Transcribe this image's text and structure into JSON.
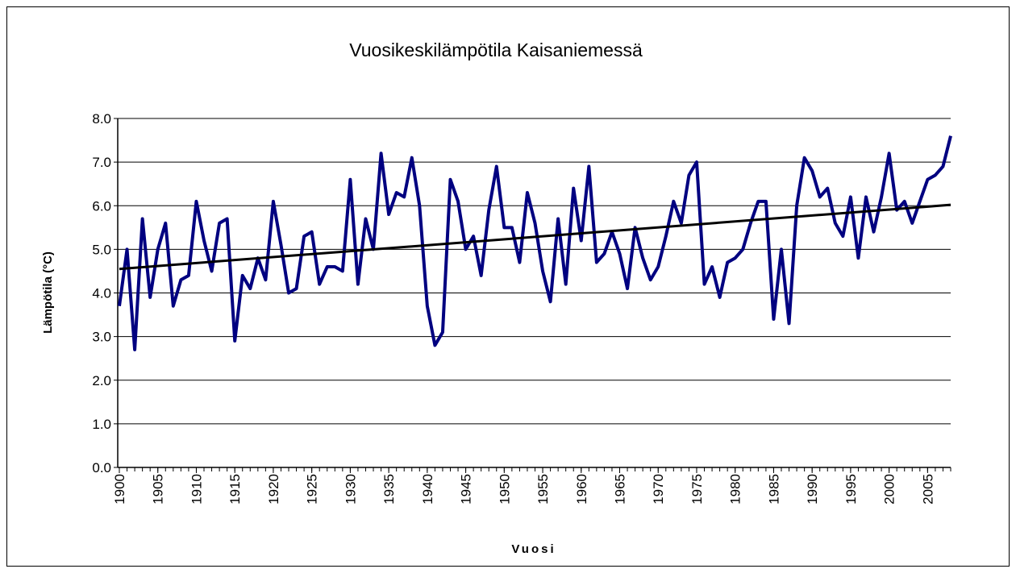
{
  "chart_data": {
    "type": "line",
    "title": "Vuosikeskilämpötila Kaisaniemessä",
    "xlabel": "Vuosi",
    "ylabel": "Lämpötila (°C)",
    "x": [
      1900,
      1901,
      1902,
      1903,
      1904,
      1905,
      1906,
      1907,
      1908,
      1909,
      1910,
      1911,
      1912,
      1913,
      1914,
      1915,
      1916,
      1917,
      1918,
      1919,
      1920,
      1921,
      1922,
      1923,
      1924,
      1925,
      1926,
      1927,
      1928,
      1929,
      1930,
      1931,
      1932,
      1933,
      1934,
      1935,
      1936,
      1937,
      1938,
      1939,
      1940,
      1941,
      1942,
      1943,
      1944,
      1945,
      1946,
      1947,
      1948,
      1949,
      1950,
      1951,
      1952,
      1953,
      1954,
      1955,
      1956,
      1957,
      1958,
      1959,
      1960,
      1961,
      1962,
      1963,
      1964,
      1965,
      1966,
      1967,
      1968,
      1969,
      1970,
      1971,
      1972,
      1973,
      1974,
      1975,
      1976,
      1977,
      1978,
      1979,
      1980,
      1981,
      1982,
      1983,
      1984,
      1985,
      1986,
      1987,
      1988,
      1989,
      1990,
      1991,
      1992,
      1993,
      1994,
      1995,
      1996,
      1997,
      1998,
      1999,
      2000,
      2001,
      2002,
      2003,
      2004,
      2005,
      2006,
      2007,
      2008
    ],
    "series": [
      {
        "color": "#000080",
        "values": [
          3.7,
          5.0,
          2.7,
          5.7,
          3.9,
          5.0,
          5.6,
          3.7,
          4.3,
          4.4,
          6.1,
          5.2,
          4.5,
          5.6,
          5.7,
          2.9,
          4.4,
          4.1,
          4.8,
          4.3,
          6.1,
          5.1,
          4.0,
          4.1,
          5.3,
          5.4,
          4.2,
          4.6,
          4.6,
          4.5,
          6.6,
          4.2,
          5.7,
          5.0,
          7.2,
          5.8,
          6.3,
          6.2,
          7.1,
          6.0,
          3.7,
          2.8,
          3.1,
          6.6,
          6.1,
          5.0,
          5.3,
          4.4,
          5.9,
          6.9,
          5.5,
          5.5,
          4.7,
          6.3,
          5.6,
          4.5,
          3.8,
          5.7,
          4.2,
          6.4,
          5.2,
          6.9,
          4.7,
          4.9,
          5.4,
          4.9,
          4.1,
          5.5,
          4.8,
          4.3,
          4.6,
          5.3,
          6.1,
          5.6,
          6.7,
          7.0,
          4.2,
          4.6,
          3.9,
          4.7,
          4.8,
          5.0,
          5.6,
          6.1,
          6.1,
          3.4,
          5.0,
          3.3,
          6.0,
          7.1,
          6.8,
          6.2,
          6.4,
          5.6,
          5.3,
          6.2,
          4.8,
          6.2,
          5.4,
          6.2,
          7.2,
          5.9,
          6.1,
          5.6,
          6.1,
          6.6,
          6.7,
          6.9,
          7.6
        ]
      }
    ],
    "trend": {
      "color": "#000000",
      "x": [
        1900,
        2008
      ],
      "values": [
        4.55,
        6.02
      ]
    },
    "xlim": [
      1900,
      2008
    ],
    "xticks": [
      1900,
      1905,
      1910,
      1915,
      1920,
      1925,
      1930,
      1935,
      1940,
      1945,
      1950,
      1955,
      1960,
      1965,
      1970,
      1975,
      1980,
      1985,
      1990,
      1995,
      2000,
      2005
    ],
    "ylim": [
      0,
      8
    ],
    "yticks": [
      {
        "value": 0,
        "label": "0.0"
      },
      {
        "value": 1,
        "label": "1.0"
      },
      {
        "value": 2,
        "label": "2.0"
      },
      {
        "value": 3,
        "label": "3.0"
      },
      {
        "value": 4,
        "label": "4.0"
      },
      {
        "value": 5,
        "label": "5.0"
      },
      {
        "value": 6,
        "label": "6.0"
      },
      {
        "value": 7,
        "label": "7.0"
      },
      {
        "value": 8,
        "label": "8.0"
      }
    ],
    "grid": true
  }
}
